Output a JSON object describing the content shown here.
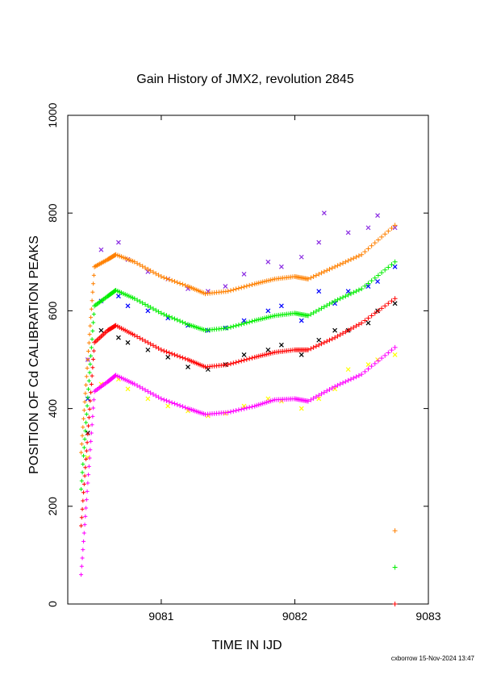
{
  "chart_data": {
    "type": "scatter",
    "title": "Gain History of JMX2, revolution 2845",
    "xlabel": "TIME IN IJD",
    "ylabel": "POSITION OF Cd CALIBRATION PEAKS",
    "footer": "cxborrow 15-Nov-2024 13:47",
    "xlim": [
      9080.3,
      9083.0
    ],
    "ylim": [
      0,
      1000
    ],
    "x_ticks": [
      9081,
      9082,
      9083
    ],
    "x_tick_labels": [
      "9081",
      "9082",
      "9083"
    ],
    "y_ticks": [
      0,
      200,
      400,
      600,
      800,
      1000
    ],
    "y_tick_labels": [
      "0",
      "200",
      "400",
      "600",
      "800",
      "1000"
    ],
    "grid": false,
    "legend": "none",
    "fit_series": [
      {
        "color": "#ff8000",
        "x": [
          9080.4,
          9080.5,
          9080.6,
          9080.66,
          9080.8,
          9081.0,
          9081.2,
          9081.33,
          9081.5,
          9081.7,
          9081.85,
          9082.0,
          9082.1,
          9082.3,
          9082.5,
          9082.75
        ],
        "y": [
          310,
          690,
          705,
          715,
          700,
          670,
          650,
          635,
          640,
          655,
          665,
          670,
          665,
          690,
          715,
          775
        ]
      },
      {
        "color": "#00ee00",
        "x": [
          9080.4,
          9080.5,
          9080.6,
          9080.66,
          9080.8,
          9081.0,
          9081.2,
          9081.33,
          9081.5,
          9081.7,
          9081.85,
          9082.0,
          9082.1,
          9082.3,
          9082.5,
          9082.75
        ],
        "y": [
          235,
          610,
          630,
          642,
          625,
          595,
          572,
          560,
          565,
          580,
          590,
          595,
          590,
          620,
          645,
          700
        ]
      },
      {
        "color": "#ff0000",
        "x": [
          9080.4,
          9080.5,
          9080.6,
          9080.66,
          9080.8,
          9081.0,
          9081.2,
          9081.33,
          9081.5,
          9081.7,
          9081.85,
          9082.0,
          9082.1,
          9082.3,
          9082.5,
          9082.75
        ],
        "y": [
          160,
          535,
          560,
          570,
          550,
          520,
          500,
          485,
          490,
          505,
          515,
          520,
          520,
          545,
          575,
          625
        ]
      },
      {
        "color": "#ff00ff",
        "x": [
          9080.4,
          9080.5,
          9080.6,
          9080.66,
          9080.8,
          9081.0,
          9081.2,
          9081.33,
          9081.5,
          9081.7,
          9081.85,
          9082.0,
          9082.1,
          9082.3,
          9082.5,
          9082.75
        ],
        "y": [
          60,
          435,
          455,
          468,
          450,
          420,
          400,
          388,
          392,
          405,
          418,
          420,
          415,
          445,
          470,
          525
        ]
      }
    ],
    "scatter_series": [
      {
        "color": "#8a2be2",
        "x": [
          9080.45,
          9080.55,
          9080.68,
          9080.75,
          9080.9,
          9081.05,
          9081.2,
          9081.35,
          9081.48,
          9081.62,
          9081.8,
          9081.9,
          9082.05,
          9082.18,
          9082.22,
          9082.4,
          9082.55,
          9082.62,
          9082.75
        ],
        "y": [
          500,
          725,
          740,
          705,
          680,
          665,
          645,
          640,
          650,
          675,
          700,
          690,
          710,
          740,
          800,
          760,
          770,
          795,
          770
        ]
      },
      {
        "color": "#0000ff",
        "x": [
          9080.45,
          9080.55,
          9080.68,
          9080.75,
          9080.9,
          9081.05,
          9081.2,
          9081.35,
          9081.48,
          9081.62,
          9081.8,
          9081.9,
          9082.05,
          9082.18,
          9082.3,
          9082.4,
          9082.55,
          9082.62,
          9082.75
        ],
        "y": [
          420,
          620,
          630,
          610,
          600,
          585,
          570,
          560,
          565,
          580,
          600,
          610,
          580,
          640,
          615,
          640,
          650,
          660,
          690
        ]
      },
      {
        "color": "#000000",
        "x": [
          9080.45,
          9080.55,
          9080.68,
          9080.75,
          9080.9,
          9081.05,
          9081.2,
          9081.35,
          9081.48,
          9081.62,
          9081.8,
          9081.9,
          9082.05,
          9082.18,
          9082.3,
          9082.4,
          9082.55,
          9082.62,
          9082.75
        ],
        "y": [
          350,
          560,
          545,
          535,
          520,
          505,
          485,
          480,
          490,
          510,
          520,
          530,
          510,
          540,
          560,
          560,
          575,
          600,
          615
        ]
      },
      {
        "color": "#ffff00",
        "x": [
          9080.45,
          9080.55,
          9080.68,
          9080.75,
          9080.9,
          9081.05,
          9081.2,
          9081.35,
          9081.48,
          9081.62,
          9081.8,
          9081.9,
          9082.05,
          9082.18,
          9082.3,
          9082.4,
          9082.55,
          9082.62,
          9082.75
        ],
        "y": [
          300,
          450,
          460,
          440,
          420,
          405,
          395,
          385,
          390,
          405,
          420,
          415,
          400,
          420,
          440,
          480,
          490,
          500,
          510
        ]
      }
    ],
    "isolated_markers": [
      {
        "color": "#ff8000",
        "x": 9082.75,
        "y": 150
      },
      {
        "color": "#00ee00",
        "x": 9082.75,
        "y": 75
      },
      {
        "color": "#ff0000",
        "x": 9082.75,
        "y": 0
      }
    ]
  }
}
